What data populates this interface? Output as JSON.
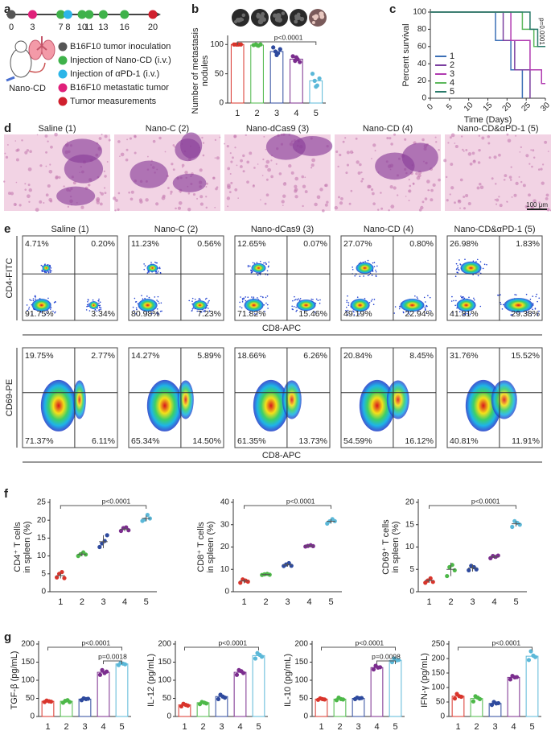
{
  "panel_labels": [
    "a",
    "b",
    "c",
    "d",
    "e",
    "f",
    "g"
  ],
  "group_colors": [
    "#d9342b",
    "#4db848",
    "#2e4a9e",
    "#7b2d8e",
    "#5bb8d8"
  ],
  "timeline": {
    "days": [
      0,
      3,
      7,
      8,
      10,
      11,
      13,
      16,
      20
    ],
    "day_colors": [
      "#555555",
      "#e0207a",
      "#3fb24a",
      "#2bb5e8",
      "#3fb24a",
      "#3fb24a",
      "#3fb24a",
      "#3fb24a",
      "#d0202e"
    ],
    "mouse_label": "Nano-CD",
    "legend": [
      {
        "label": "B16F10 tumor inoculation",
        "color": "#555555"
      },
      {
        "label": "Injection of Nano-CD (i.v.)",
        "color": "#3fb24a"
      },
      {
        "label": "Injection of αPD-1 (i.v.)",
        "color": "#2bb5e8"
      },
      {
        "label": "B16F10 metastatic tumor",
        "color": "#e0207a"
      },
      {
        "label": "Tumor measurements",
        "color": "#d0202e"
      }
    ]
  },
  "chart_data": [
    {
      "type": "bar",
      "ylabel": [
        "Number of metastasis",
        "nodules"
      ],
      "categories": [
        "1",
        "2",
        "3",
        "4",
        "5"
      ],
      "values": [
        100,
        99,
        88,
        75,
        38
      ],
      "points": [
        [
          100,
          100,
          100,
          100,
          100
        ],
        [
          99,
          100,
          98,
          100,
          99
        ],
        [
          95,
          88,
          85,
          92,
          82
        ],
        [
          80,
          72,
          75,
          70,
          78
        ],
        [
          50,
          38,
          30,
          42,
          28
        ]
      ],
      "ylim": [
        0,
        110
      ],
      "yticks": [
        0,
        50,
        100
      ],
      "annotations": [
        "p<0.0001"
      ]
    },
    {
      "type": "survival",
      "ylabel": "Percent survival",
      "xlabel": "Time (Days)",
      "xlim": [
        0,
        30
      ],
      "xticks": [
        0,
        5,
        10,
        15,
        20,
        25,
        30
      ],
      "ylim": [
        0,
        100
      ],
      "yticks": [
        0,
        20,
        40,
        60,
        80,
        100
      ],
      "series": [
        {
          "name": "1",
          "color": "#3b6fb6",
          "x": [
            0,
            17,
            21,
            24
          ],
          "values": [
            100,
            67,
            33,
            0
          ]
        },
        {
          "name": "2",
          "color": "#7b3fa0",
          "x": [
            0,
            19,
            22,
            26
          ],
          "values": [
            100,
            67,
            33,
            0
          ]
        },
        {
          "name": "3",
          "color": "#b03ab0",
          "x": [
            0,
            21,
            26,
            29,
            30
          ],
          "values": [
            100,
            67,
            33,
            17,
            17
          ]
        },
        {
          "name": "4",
          "color": "#5cb85c",
          "x": [
            0,
            24,
            27,
            30
          ],
          "values": [
            100,
            80,
            60,
            60
          ]
        },
        {
          "name": "5",
          "color": "#2a7a6a",
          "x": [
            0,
            26,
            28,
            30
          ],
          "values": [
            100,
            80,
            60,
            60
          ]
        }
      ],
      "annotations": [
        "p=0.0001"
      ]
    },
    {
      "type": "dot",
      "ylabel": [
        "CD4⁺ T cells",
        "in spleen (%)"
      ],
      "categories": [
        "1",
        "2",
        "3",
        "4",
        "5"
      ],
      "values": [
        4.5,
        10.5,
        14,
        17.5,
        20.5
      ],
      "errors": [
        0.8,
        0.6,
        1.8,
        0.6,
        0.8
      ],
      "points": [
        [
          4,
          5,
          5.5,
          3.8
        ],
        [
          10,
          10.5,
          11,
          10.4
        ],
        [
          12.5,
          13.5,
          14.2,
          15.8
        ],
        [
          17,
          17.8,
          18,
          17.2
        ],
        [
          19.8,
          20.2,
          21.5,
          20.5
        ]
      ],
      "ylim": [
        0,
        25
      ],
      "yticks": [
        0,
        5,
        10,
        15,
        20,
        25
      ],
      "annotations": [
        "p<0.0001"
      ]
    },
    {
      "type": "dot",
      "ylabel": [
        "CD8⁺ T cells",
        "in spleen (%)"
      ],
      "categories": [
        "1",
        "2",
        "3",
        "4",
        "5"
      ],
      "values": [
        4.8,
        7.7,
        12,
        20.5,
        31.5
      ],
      "errors": [
        1,
        0.4,
        0.8,
        0.3,
        1
      ],
      "points": [
        [
          4,
          5.5,
          5,
          4.5
        ],
        [
          7.5,
          7.8,
          8,
          7.6
        ],
        [
          11.5,
          12.2,
          12.8,
          11.6
        ],
        [
          20.2,
          20.5,
          20.8,
          20.4
        ],
        [
          30.5,
          31.5,
          32.5,
          31.6
        ]
      ],
      "ylim": [
        0,
        40
      ],
      "yticks": [
        0,
        10,
        20,
        30,
        40
      ],
      "annotations": [
        "p<0.0001"
      ]
    },
    {
      "type": "dot",
      "ylabel": [
        "CD69⁺ T cells",
        "in spleen (%)"
      ],
      "categories": [
        "1",
        "2",
        "3",
        "4",
        "5"
      ],
      "values": [
        2.5,
        5,
        5.3,
        7.8,
        15.2
      ],
      "errors": [
        0.5,
        1.5,
        0.8,
        0.4,
        0.6
      ],
      "points": [
        [
          2,
          2.5,
          3,
          2.2
        ],
        [
          3.5,
          5.5,
          6,
          4.8
        ],
        [
          4.8,
          5.8,
          5.5,
          5
        ],
        [
          7.5,
          8,
          7.8,
          8.1
        ],
        [
          14.5,
          15.8,
          15.4,
          15
        ]
      ],
      "ylim": [
        0,
        20
      ],
      "yticks": [
        0,
        5,
        10,
        15,
        20
      ],
      "annotations": [
        "p<0.0001"
      ]
    },
    {
      "type": "bar",
      "ylabel": "TGF-β (pg/mL)",
      "categories": [
        "1",
        "2",
        "3",
        "4",
        "5"
      ],
      "values": [
        42,
        42,
        48,
        122,
        145
      ],
      "points": [
        [
          40,
          44,
          42,
          41
        ],
        [
          38,
          43,
          45,
          40
        ],
        [
          45,
          50,
          48,
          49
        ],
        [
          115,
          128,
          120,
          124
        ],
        [
          142,
          148,
          146,
          144
        ]
      ],
      "ylim": [
        0,
        200
      ],
      "yticks": [
        0,
        50,
        100,
        150,
        200
      ],
      "annotations": [
        "p<0.0001",
        "p=0.0018"
      ]
    },
    {
      "type": "bar",
      "ylabel": "IL-12 (pg/mL)",
      "categories": [
        "1",
        "2",
        "3",
        "4",
        "5"
      ],
      "values": [
        32,
        38,
        55,
        122,
        168
      ],
      "points": [
        [
          28,
          35,
          32,
          30
        ],
        [
          34,
          40,
          38,
          36
        ],
        [
          48,
          60,
          55,
          52
        ],
        [
          115,
          128,
          125,
          120
        ],
        [
          160,
          175,
          170,
          165
        ]
      ],
      "ylim": [
        0,
        200
      ],
      "yticks": [
        0,
        50,
        100,
        150,
        200
      ],
      "annotations": [
        "p<0.0001"
      ]
    },
    {
      "type": "bar",
      "ylabel": "IL-10 (pg/mL)",
      "categories": [
        "1",
        "2",
        "3",
        "4",
        "5"
      ],
      "values": [
        48,
        48,
        50,
        135,
        155
      ],
      "points": [
        [
          46,
          50,
          48,
          47
        ],
        [
          45,
          52,
          48,
          47
        ],
        [
          48,
          52,
          50,
          51
        ],
        [
          130,
          140,
          135,
          136
        ],
        [
          150,
          160,
          155,
          156
        ]
      ],
      "ylim": [
        0,
        200
      ],
      "yticks": [
        0,
        50,
        100,
        150,
        200
      ],
      "annotations": [
        "p<0.0001",
        "p=0.0098"
      ]
    },
    {
      "type": "bar",
      "ylabel": "IFN-γ (pg/mL)",
      "categories": [
        "1",
        "2",
        "3",
        "4",
        "5"
      ],
      "values": [
        70,
        62,
        45,
        135,
        208
      ],
      "points": [
        [
          62,
          78,
          70,
          68
        ],
        [
          52,
          70,
          65,
          60
        ],
        [
          40,
          50,
          45,
          46
        ],
        [
          128,
          140,
          135,
          136
        ],
        [
          195,
          225,
          210,
          205
        ]
      ],
      "ylim": [
        0,
        250
      ],
      "yticks": [
        0,
        50,
        100,
        150,
        200,
        250
      ],
      "annotations": [
        "p<0.0001"
      ]
    }
  ],
  "histology": {
    "titles": [
      "Saline (1)",
      "Nano-C (2)",
      "Nano-dCas9 (3)",
      "Nano-CD (4)",
      "Nano-CD&αPD-1 (5)"
    ],
    "scale_bar": "100 μm"
  },
  "flow": {
    "titles": [
      "Saline (1)",
      "Nano-C (2)",
      "Nano-dCas9 (3)",
      "Nano-CD (4)",
      "Nano-CD&αPD-1 (5)"
    ],
    "cd4": {
      "y_label": "CD4-FITC",
      "x_label": "CD8-APC",
      "quadrants": [
        [
          "4.71%",
          "0.20%",
          "91.75%",
          "3.34%"
        ],
        [
          "11.23%",
          "0.56%",
          "80.98%",
          "7.23%"
        ],
        [
          "12.65%",
          "0.07%",
          "71.82%",
          "15.46%"
        ],
        [
          "27.07%",
          "0.80%",
          "49.19%",
          "22.94%"
        ],
        [
          "26.98%",
          "1.83%",
          "41.81%",
          "29.38%"
        ]
      ]
    },
    "cd69": {
      "y_label": "CD69-PE",
      "x_label": "CD8-APC",
      "quadrants": [
        [
          "19.75%",
          "2.77%",
          "71.37%",
          "6.11%"
        ],
        [
          "14.27%",
          "5.89%",
          "65.34%",
          "14.50%"
        ],
        [
          "18.66%",
          "6.26%",
          "61.35%",
          "13.73%"
        ],
        [
          "20.84%",
          "8.45%",
          "54.59%",
          "16.12%"
        ],
        [
          "31.76%",
          "15.52%",
          "40.81%",
          "11.91%"
        ]
      ]
    }
  }
}
